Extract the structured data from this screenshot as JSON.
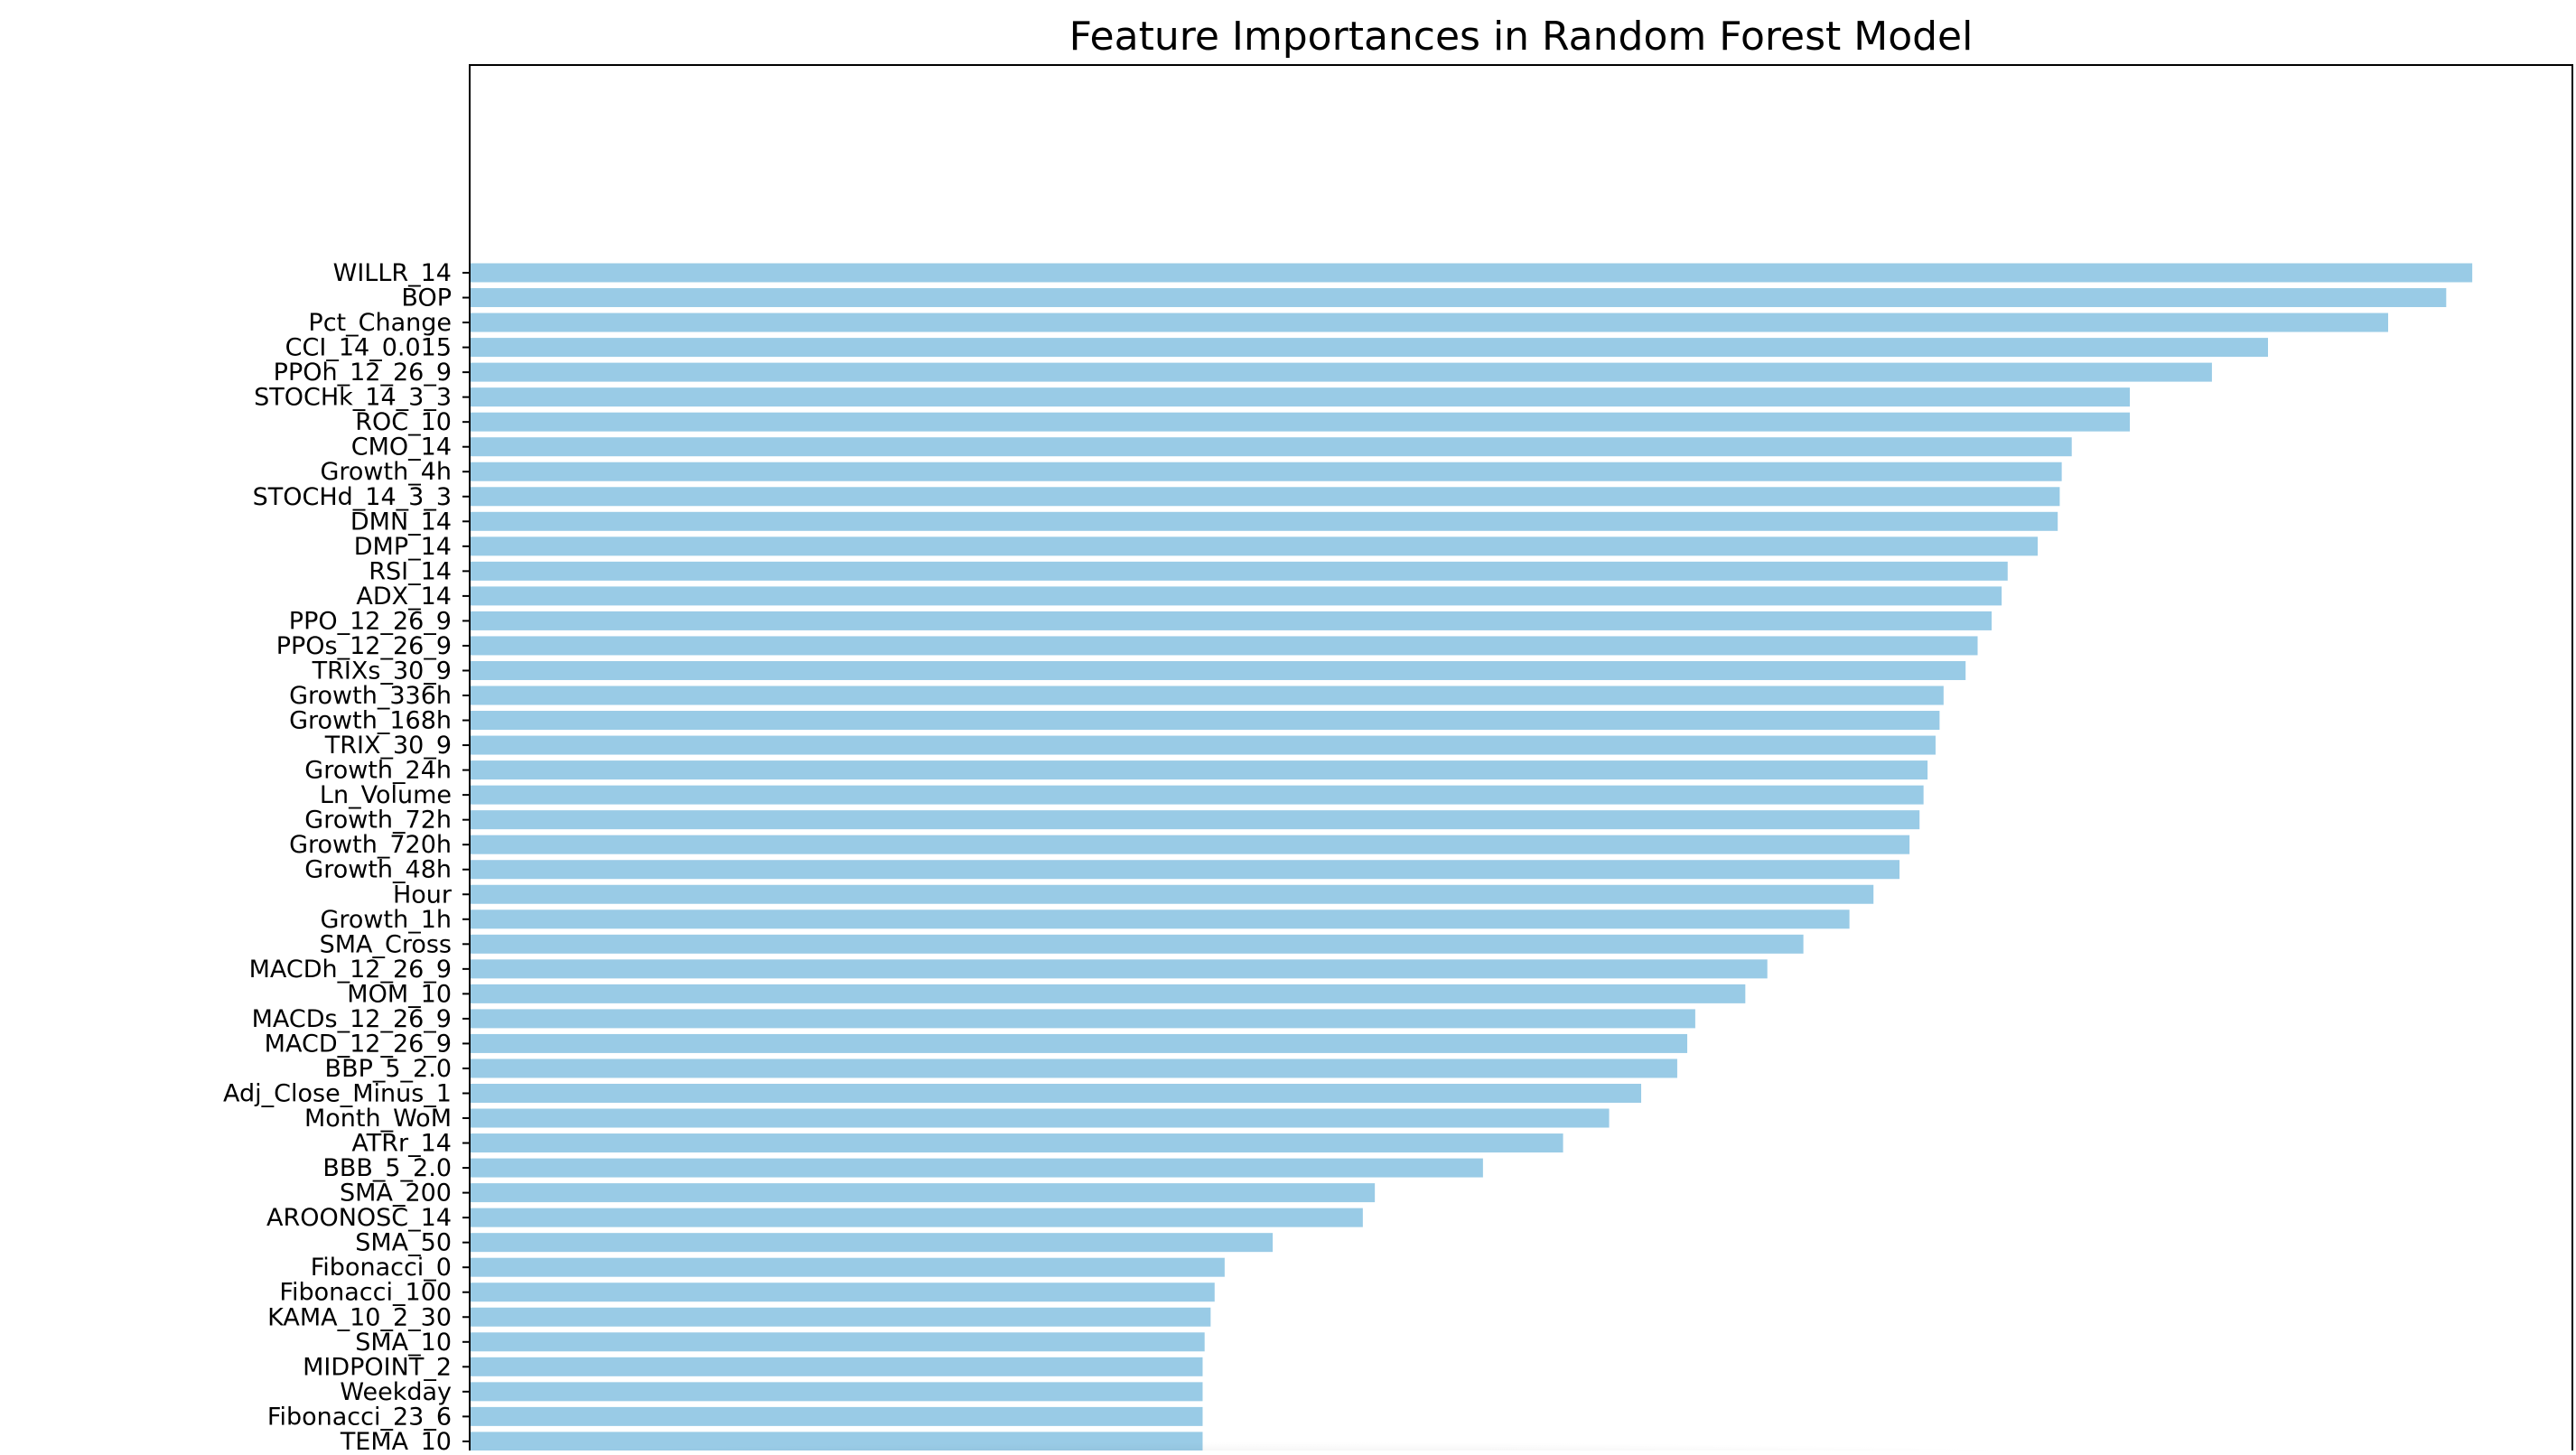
{
  "chart_data": {
    "type": "bar",
    "orientation": "horizontal",
    "title": "Feature Importances in Random Forest Model",
    "xlabel": "",
    "ylabel": "",
    "bar_color": "#99cbe6",
    "axis_color": "#000000",
    "background": "#ffffff",
    "grid": false,
    "xlim": [
      0,
      1.05
    ],
    "categories": [
      "WILLR_14",
      "BOP",
      "Pct_Change",
      "CCI_14_0.015",
      "PPOh_12_26_9",
      "STOCHk_14_3_3",
      "ROC_10",
      "CMO_14",
      "Growth_4h",
      "STOCHd_14_3_3",
      "DMN_14",
      "DMP_14",
      "RSI_14",
      "ADX_14",
      "PPO_12_26_9",
      "PPOs_12_26_9",
      "TRIXs_30_9",
      "Growth_336h",
      "Growth_168h",
      "TRIX_30_9",
      "Growth_24h",
      "Ln_Volume",
      "Growth_72h",
      "Growth_720h",
      "Growth_48h",
      "Hour",
      "Growth_1h",
      "SMA_Cross",
      "MACDh_12_26_9",
      "MOM_10",
      "MACDs_12_26_9",
      "MACD_12_26_9",
      "BBP_5_2.0",
      "Adj_Close_Minus_1",
      "Month_WoM",
      "ATRr_14",
      "BBB_5_2.0",
      "SMA_200",
      "AROONOSC_14",
      "SMA_50",
      "Fibonacci_0",
      "Fibonacci_100",
      "KAMA_10_2_30",
      "SMA_10",
      "MIDPOINT_2",
      "Weekday",
      "Fibonacci_23_6",
      "TEMA_10"
    ],
    "values": [
      1.0,
      0.987,
      0.958,
      0.898,
      0.87,
      0.829,
      0.829,
      0.8,
      0.795,
      0.794,
      0.793,
      0.783,
      0.768,
      0.765,
      0.76,
      0.753,
      0.747,
      0.736,
      0.734,
      0.732,
      0.728,
      0.726,
      0.724,
      0.719,
      0.714,
      0.701,
      0.689,
      0.666,
      0.648,
      0.637,
      0.612,
      0.608,
      0.603,
      0.585,
      0.569,
      0.546,
      0.506,
      0.452,
      0.446,
      0.401,
      0.377,
      0.372,
      0.37,
      0.367,
      0.366,
      0.366,
      0.366,
      0.366
    ]
  }
}
